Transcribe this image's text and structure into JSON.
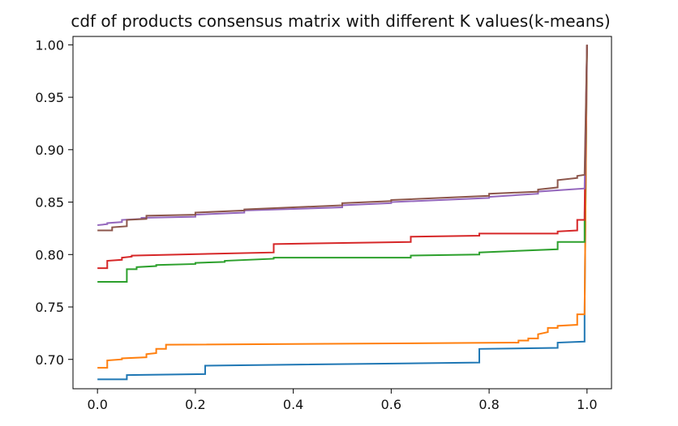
{
  "chart_data": {
    "type": "line",
    "title": "cdf of products consensus matrix with different K values(k-means)",
    "xlabel": "",
    "ylabel": "",
    "xlim": [
      -0.05,
      1.05
    ],
    "ylim": [
      0.672,
      1.008
    ],
    "xticks": [
      0.0,
      0.2,
      0.4,
      0.6,
      0.8,
      1.0
    ],
    "xtick_labels": [
      "0.0",
      "0.2",
      "0.4",
      "0.6",
      "0.8",
      "1.0"
    ],
    "yticks": [
      0.7,
      0.75,
      0.8,
      0.85,
      0.9,
      0.95,
      1.0
    ],
    "ytick_labels": [
      "0.70",
      "0.75",
      "0.80",
      "0.85",
      "0.90",
      "0.95",
      "1.00"
    ],
    "grid": false,
    "legend": false,
    "series": [
      {
        "color": "#1f77b4",
        "x": [
          0.0,
          0.06,
          0.06,
          0.22,
          0.22,
          0.78,
          0.78,
          0.94,
          0.94,
          0.995,
          0.995,
          1.0
        ],
        "y": [
          0.681,
          0.681,
          0.685,
          0.686,
          0.694,
          0.697,
          0.71,
          0.711,
          0.716,
          0.717,
          0.742,
          1.0
        ]
      },
      {
        "color": "#ff7f0e",
        "x": [
          0.0,
          0.02,
          0.02,
          0.05,
          0.05,
          0.1,
          0.1,
          0.12,
          0.12,
          0.14,
          0.14,
          0.86,
          0.86,
          0.88,
          0.88,
          0.9,
          0.9,
          0.92,
          0.92,
          0.94,
          0.94,
          0.98,
          0.98,
          0.995,
          1.0
        ],
        "y": [
          0.692,
          0.692,
          0.699,
          0.7,
          0.701,
          0.702,
          0.705,
          0.706,
          0.71,
          0.71,
          0.714,
          0.716,
          0.718,
          0.718,
          0.72,
          0.72,
          0.724,
          0.726,
          0.73,
          0.73,
          0.732,
          0.733,
          0.743,
          0.743,
          1.0
        ]
      },
      {
        "color": "#2ca02c",
        "x": [
          0.0,
          0.06,
          0.06,
          0.08,
          0.08,
          0.12,
          0.12,
          0.2,
          0.2,
          0.26,
          0.26,
          0.36,
          0.36,
          0.64,
          0.64,
          0.78,
          0.78,
          0.94,
          0.94,
          0.995,
          0.995,
          1.0
        ],
        "y": [
          0.774,
          0.774,
          0.786,
          0.786,
          0.788,
          0.789,
          0.79,
          0.791,
          0.792,
          0.793,
          0.794,
          0.796,
          0.797,
          0.797,
          0.799,
          0.8,
          0.802,
          0.805,
          0.812,
          0.812,
          0.83,
          1.0
        ]
      },
      {
        "color": "#d62728",
        "x": [
          0.0,
          0.02,
          0.02,
          0.05,
          0.05,
          0.07,
          0.07,
          0.36,
          0.36,
          0.64,
          0.64,
          0.78,
          0.78,
          0.94,
          0.94,
          0.98,
          0.98,
          0.995,
          0.995,
          1.0
        ],
        "y": [
          0.787,
          0.787,
          0.794,
          0.795,
          0.797,
          0.798,
          0.799,
          0.802,
          0.81,
          0.812,
          0.817,
          0.818,
          0.82,
          0.82,
          0.822,
          0.823,
          0.833,
          0.833,
          0.84,
          1.0
        ]
      },
      {
        "color": "#9467bd",
        "x": [
          0.0,
          0.02,
          0.02,
          0.05,
          0.05,
          0.09,
          0.09,
          0.2,
          0.2,
          0.3,
          0.3,
          0.5,
          0.5,
          0.6,
          0.6,
          0.8,
          0.8,
          0.9,
          0.9,
          0.995,
          1.0
        ],
        "y": [
          0.828,
          0.829,
          0.83,
          0.831,
          0.833,
          0.834,
          0.835,
          0.836,
          0.838,
          0.84,
          0.842,
          0.845,
          0.847,
          0.849,
          0.85,
          0.854,
          0.855,
          0.858,
          0.86,
          0.863,
          1.0
        ]
      },
      {
        "color": "#8c564b",
        "x": [
          0.0,
          0.03,
          0.03,
          0.06,
          0.06,
          0.1,
          0.1,
          0.2,
          0.2,
          0.3,
          0.3,
          0.5,
          0.5,
          0.6,
          0.6,
          0.8,
          0.8,
          0.9,
          0.9,
          0.94,
          0.94,
          0.98,
          0.98,
          0.995,
          1.0
        ],
        "y": [
          0.823,
          0.823,
          0.826,
          0.827,
          0.833,
          0.834,
          0.837,
          0.838,
          0.84,
          0.842,
          0.843,
          0.847,
          0.849,
          0.851,
          0.852,
          0.856,
          0.858,
          0.86,
          0.862,
          0.864,
          0.871,
          0.873,
          0.875,
          0.876,
          1.0
        ]
      }
    ]
  }
}
